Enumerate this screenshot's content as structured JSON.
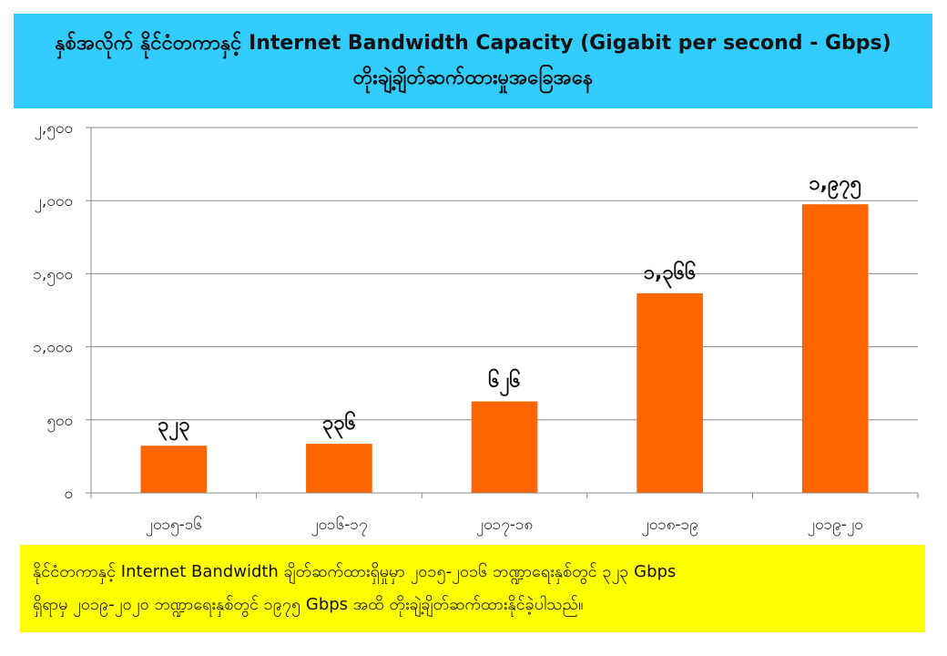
{
  "header": {
    "title_line1": "နှစ်အလိုက် နိုင်ငံတကာနှင့် Internet Bandwidth Capacity (Gigabit per second - Gbps)",
    "title_line2": "တိုးချဲ့ချိတ်ဆက်ထားမှုအခြေအနေ"
  },
  "footer": {
    "line1": "နိုင်ငံတကာနှင့် Internet Bandwidth ချိတ်ဆက်ထားရှိမှုမှာ ၂၀၁၅-၂၀၁၆ ဘဏ္ဍာရေးနှစ်တွင် ၃၂၃ Gbps",
    "line2": "ရှိရာမှ ၂၀၁၉-၂၀၂၀ ဘဏ္ဍာရေးနှစ်တွင် ၁၉၇၅ Gbps အထိ တိုးချဲ့ချိတ်ဆက်ထားနိုင်ခဲ့ပါသည်။"
  },
  "colors": {
    "bar": "#ff6600",
    "title_bg": "#33ccff",
    "footer_bg": "#ffff00"
  },
  "chart_data": {
    "type": "bar",
    "categories": [
      "၂၀၁၅-၁၆",
      "၂၀၁၆-၁၇",
      "၂၀၁၇-၁၈",
      "၂၀၁၈-၁၉",
      "၂၀၁၉-၂၀"
    ],
    "values": [
      323,
      336,
      626,
      1366,
      1975
    ],
    "data_labels": [
      "၃၂၃",
      "၃၃၆",
      "၆၂၆",
      "၁,၃၆၆",
      "၁,၉၇၅"
    ],
    "yticks": [
      0,
      500,
      1000,
      1500,
      2000,
      2500
    ],
    "ytick_labels": [
      "၀",
      "၅၀၀",
      "၁,၀၀၀",
      "၁,၅၀၀",
      "၂,၀၀၀",
      "၂,၅၀၀"
    ],
    "ylim": [
      0,
      2500
    ],
    "grid": true,
    "legend": false
  }
}
